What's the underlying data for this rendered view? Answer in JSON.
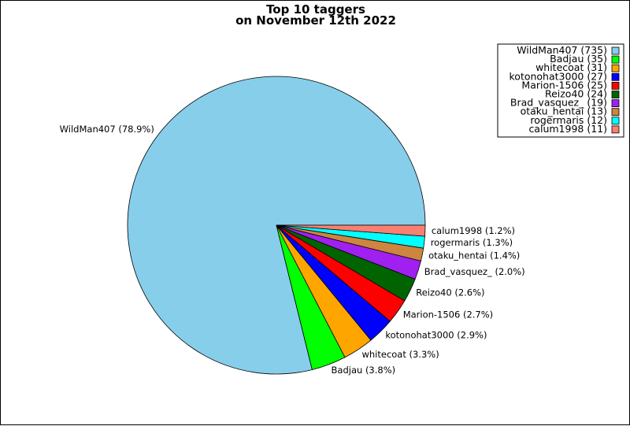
{
  "chart_data": {
    "type": "pie",
    "title_line1": "Top 10 taggers",
    "title_line2": "on November 12th 2022",
    "start_angle_deg": 0,
    "direction": "counterclockwise",
    "legend_placement": "top-right",
    "slices": [
      {
        "name": "WildMan407",
        "value": 735,
        "percent_label": "WildMan407 (78.9%)",
        "legend_label": "WildMan407 (735)",
        "color": "#87ceeb"
      },
      {
        "name": "Badjau",
        "value": 35,
        "percent_label": "Badjau (3.8%)",
        "legend_label": "Badjau (35)",
        "color": "#00ff00"
      },
      {
        "name": "whitecoat",
        "value": 31,
        "percent_label": "whitecoat (3.3%)",
        "legend_label": "whitecoat (31)",
        "color": "#ffa500"
      },
      {
        "name": "kotonohat3000",
        "value": 27,
        "percent_label": "kotonohat3000 (2.9%)",
        "legend_label": "kotonohat3000 (27)",
        "color": "#0000ff"
      },
      {
        "name": "Marion-1506",
        "value": 25,
        "percent_label": "Marion-1506 (2.7%)",
        "legend_label": "Marion-1506 (25)",
        "color": "#ff0000"
      },
      {
        "name": "Reizo40",
        "value": 24,
        "percent_label": "Reizo40 (2.6%)",
        "legend_label": "Reizo40 (24)",
        "color": "#006400"
      },
      {
        "name": "Brad_vasquez_",
        "value": 19,
        "percent_label": "Brad_vasquez_ (2.0%)",
        "legend_label": "Brad_vasquez_ (19)",
        "color": "#a020f0"
      },
      {
        "name": "otaku_hentai",
        "value": 13,
        "percent_label": "otaku_hentai (1.4%)",
        "legend_label": "otaku_hentai (13)",
        "color": "#cd853f"
      },
      {
        "name": "rogermaris",
        "value": 12,
        "percent_label": "rogermaris (1.3%)",
        "legend_label": "rogermaris (12)",
        "color": "#00ffff"
      },
      {
        "name": "calum1998",
        "value": 11,
        "percent_label": "calum1998 (1.2%)",
        "legend_label": "calum1998 (11)",
        "color": "#fa8072"
      }
    ]
  }
}
